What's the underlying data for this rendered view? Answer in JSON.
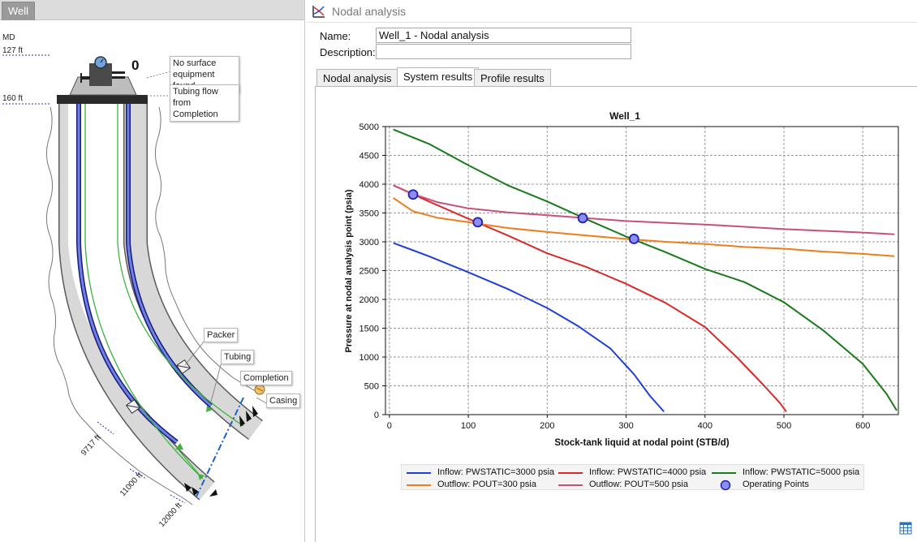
{
  "well_panel": {
    "tab_label": "Well",
    "md_header": "MD",
    "depth_labels": [
      "127 ft",
      "160 ft",
      "9717 ft",
      "11000 ft",
      "12000 ft"
    ],
    "surface_value": "0",
    "tooltips": {
      "no_surface": "No surface equipment found",
      "tubing_flow": "Tubing flow from Completion",
      "packer": "Packer",
      "tubing": "Tubing",
      "completion": "Completion",
      "casing": "Casing"
    }
  },
  "nodal_panel": {
    "title": "Nodal analysis",
    "name_label": "Name:",
    "name_value": "Well_1 - Nodal analysis",
    "description_label": "Description:",
    "description_value": "",
    "tabs": [
      {
        "label": "Nodal analysis",
        "active": false
      },
      {
        "label": "System results",
        "active": true
      },
      {
        "label": "Profile results",
        "active": false
      }
    ]
  },
  "chart_data": {
    "type": "line",
    "title": "Well_1",
    "xlabel": "Stock-tank liquid at nodal point (STB/d)",
    "ylabel": "Pressure at nodal analysis point (psia)",
    "xlim": [
      -5,
      645
    ],
    "ylim": [
      0,
      5000
    ],
    "xticks": [
      "0",
      "100",
      "200",
      "300",
      "400",
      "500",
      "600"
    ],
    "yticks": [
      "0",
      "500",
      "1000",
      "1500",
      "2000",
      "2500",
      "3000",
      "3500",
      "4000",
      "4500",
      "5000"
    ],
    "grid": true,
    "legend_position": "bottom",
    "series": [
      {
        "name": "Inflow: PWSTATIC=3000 psia",
        "color": "#1f3fd8",
        "x": [
          5,
          50,
          100,
          150,
          200,
          240,
          280,
          310,
          330,
          348
        ],
        "y": [
          2980,
          2750,
          2470,
          2180,
          1850,
          1530,
          1150,
          700,
          330,
          50
        ]
      },
      {
        "name": "Inflow: PWSTATIC=4000 psia",
        "color": "#d92a2a",
        "x": [
          5,
          50,
          100,
          150,
          200,
          250,
          300,
          350,
          400,
          440,
          475,
          495,
          503
        ],
        "y": [
          3980,
          3700,
          3400,
          3110,
          2800,
          2560,
          2270,
          1940,
          1520,
          1000,
          500,
          200,
          50
        ]
      },
      {
        "name": "Inflow: PWSTATIC=5000 psia",
        "color": "#187a1a",
        "x": [
          5,
          50,
          100,
          150,
          200,
          250,
          300,
          350,
          400,
          450,
          500,
          550,
          600,
          630,
          643
        ],
        "y": [
          4950,
          4700,
          4330,
          3980,
          3700,
          3390,
          3090,
          2820,
          2530,
          2300,
          1950,
          1460,
          880,
          360,
          70
        ]
      },
      {
        "name": "Outflow: POUT=300 psia",
        "color": "#ee7d1c",
        "x": [
          5,
          30,
          60,
          100,
          150,
          200,
          250,
          300,
          350,
          400,
          450,
          500,
          550,
          600,
          640
        ],
        "y": [
          3760,
          3530,
          3420,
          3340,
          3240,
          3170,
          3110,
          3050,
          3000,
          2960,
          2910,
          2880,
          2830,
          2790,
          2750
        ]
      },
      {
        "name": "Outflow: POUT=500 psia",
        "color": "#c9507a",
        "x": [
          5,
          30,
          60,
          100,
          150,
          200,
          250,
          300,
          350,
          400,
          450,
          500,
          550,
          600,
          640
        ],
        "y": [
          3980,
          3830,
          3690,
          3580,
          3510,
          3460,
          3410,
          3360,
          3330,
          3300,
          3260,
          3220,
          3190,
          3160,
          3130
        ]
      }
    ],
    "operating_points": {
      "name": "Operating Points",
      "points": [
        {
          "x": 30,
          "y": 3820
        },
        {
          "x": 112,
          "y": 3340
        },
        {
          "x": 245,
          "y": 3410
        },
        {
          "x": 310,
          "y": 3050
        }
      ]
    }
  }
}
